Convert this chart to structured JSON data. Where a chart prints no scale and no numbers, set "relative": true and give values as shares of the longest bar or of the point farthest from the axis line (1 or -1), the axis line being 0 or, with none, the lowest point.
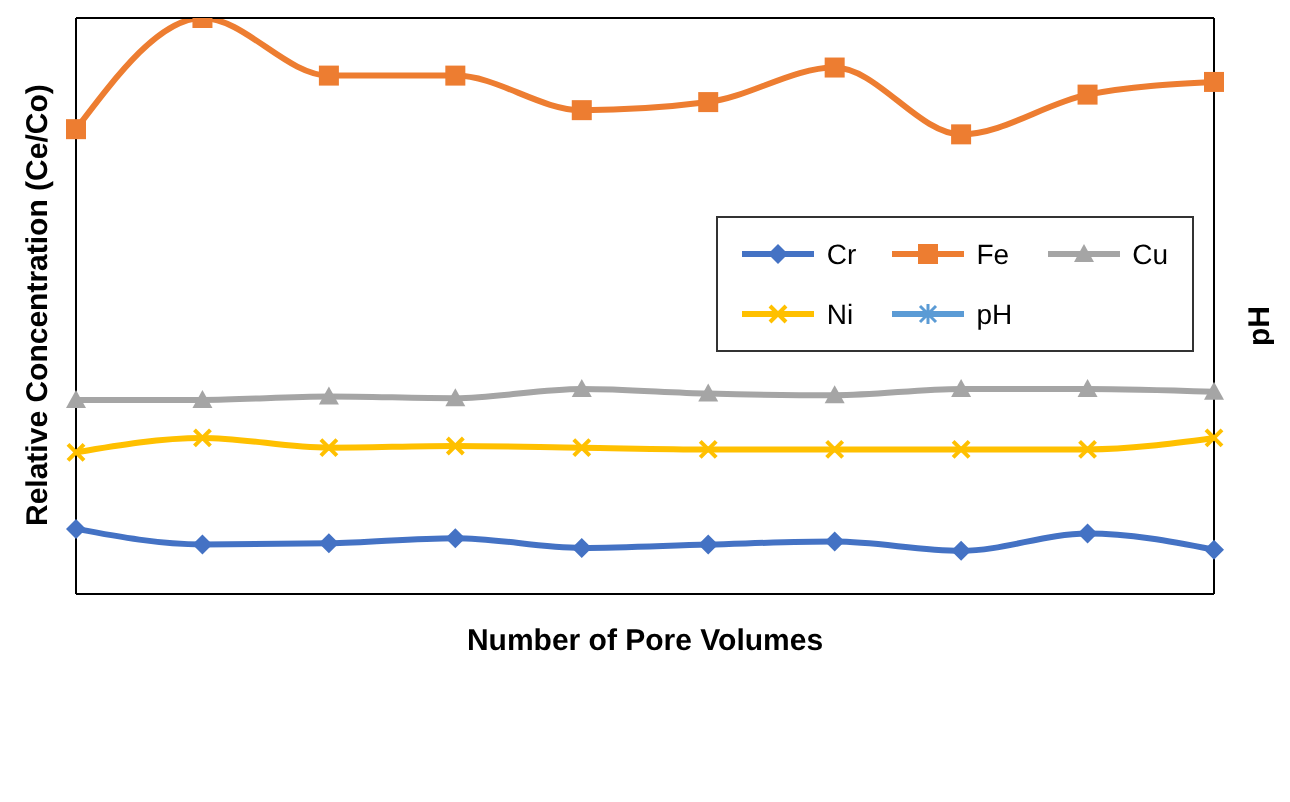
{
  "chart_data": {
    "type": "line",
    "relative": true,
    "xlabel": "Number of Pore Volumes",
    "ylabel": "Relative Concentration (Ce/Co)",
    "y2label": "pH",
    "legend": "right",
    "line_style": "solid",
    "categories": [
      null,
      null,
      null,
      null,
      null,
      null,
      null,
      null,
      null,
      null
    ],
    "series": [
      {
        "name": "Cr",
        "color": "#4472c4",
        "marker": "diamond",
        "values": [
          0.113,
          0.086,
          0.088,
          0.097,
          0.08,
          0.086,
          0.091,
          0.075,
          0.105,
          0.077
        ]
      },
      {
        "name": "Fe",
        "color": "#ed7d31",
        "marker": "square",
        "values": [
          0.807,
          1,
          0.9,
          0.9,
          0.84,
          0.854,
          0.914,
          0.798,
          0.867,
          0.889
        ]
      },
      {
        "name": "Cu",
        "color": "#a5a5a5",
        "marker": "triangle",
        "values": [
          0.337,
          0.337,
          0.343,
          0.34,
          0.356,
          0.348,
          0.345,
          0.356,
          0.356,
          0.351
        ]
      },
      {
        "name": "Ni",
        "color": "#ffc000",
        "marker": "cross",
        "values": [
          0.246,
          0.271,
          0.254,
          0.257,
          0.254,
          0.251,
          0.251,
          0.251,
          0.251,
          0.271
        ]
      },
      {
        "name": "pH",
        "color": "#5b9bd5",
        "marker": "star",
        "axis": "y2",
        "values": [
          null,
          null,
          null,
          null,
          null,
          null,
          null,
          null,
          null,
          null
        ]
      }
    ]
  }
}
